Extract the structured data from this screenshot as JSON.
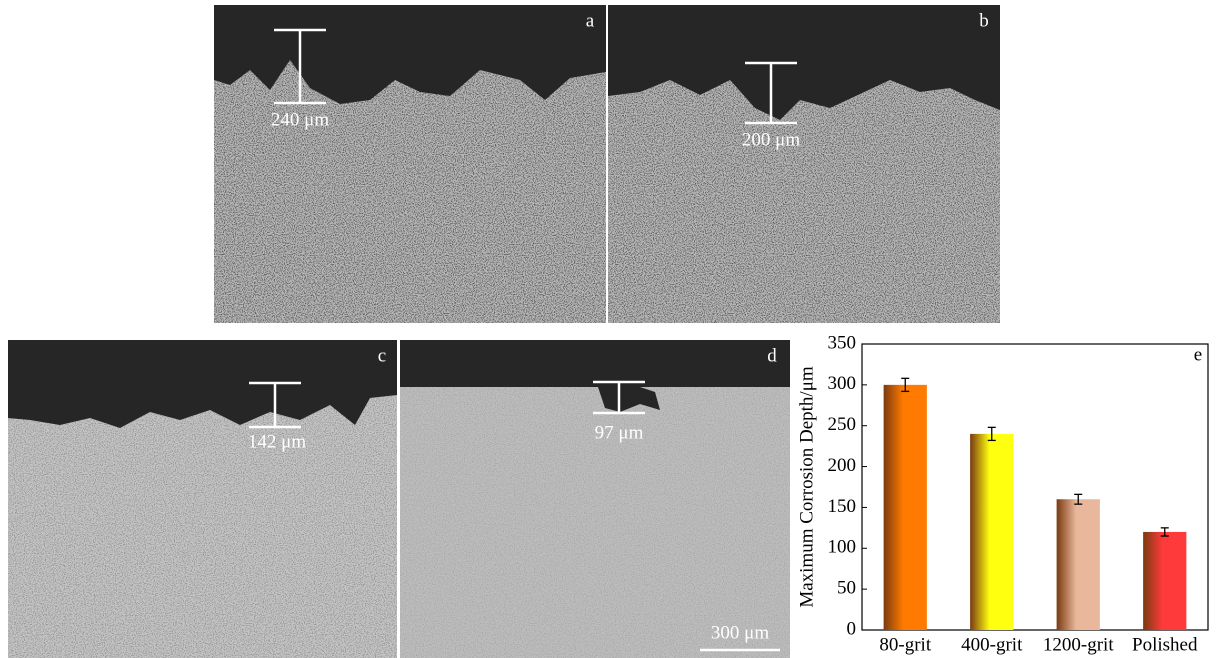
{
  "panels": [
    {
      "label": "a",
      "measurement": "240 μm"
    },
    {
      "label": "b",
      "measurement": "200 μm"
    },
    {
      "label": "c",
      "measurement": "142 μm"
    },
    {
      "label": "d",
      "measurement": "97 μm"
    }
  ],
  "scale_bar": "300 μm",
  "chart_data": {
    "type": "bar",
    "panel_label": "e",
    "y_label": "Maximum Corrosion Depth/μm",
    "categories": [
      "80-grit",
      "400-grit",
      "1200-grit",
      "Polished"
    ],
    "values": [
      300,
      240,
      160,
      120
    ],
    "errors": [
      8,
      8,
      6,
      5
    ],
    "colors": [
      "#ff7a00",
      "#ffff10",
      "#e9b79c",
      "#ff3a3a"
    ],
    "ylim": [
      0,
      350
    ],
    "yticks": [
      0,
      50,
      100,
      150,
      200,
      250,
      300,
      350
    ]
  }
}
